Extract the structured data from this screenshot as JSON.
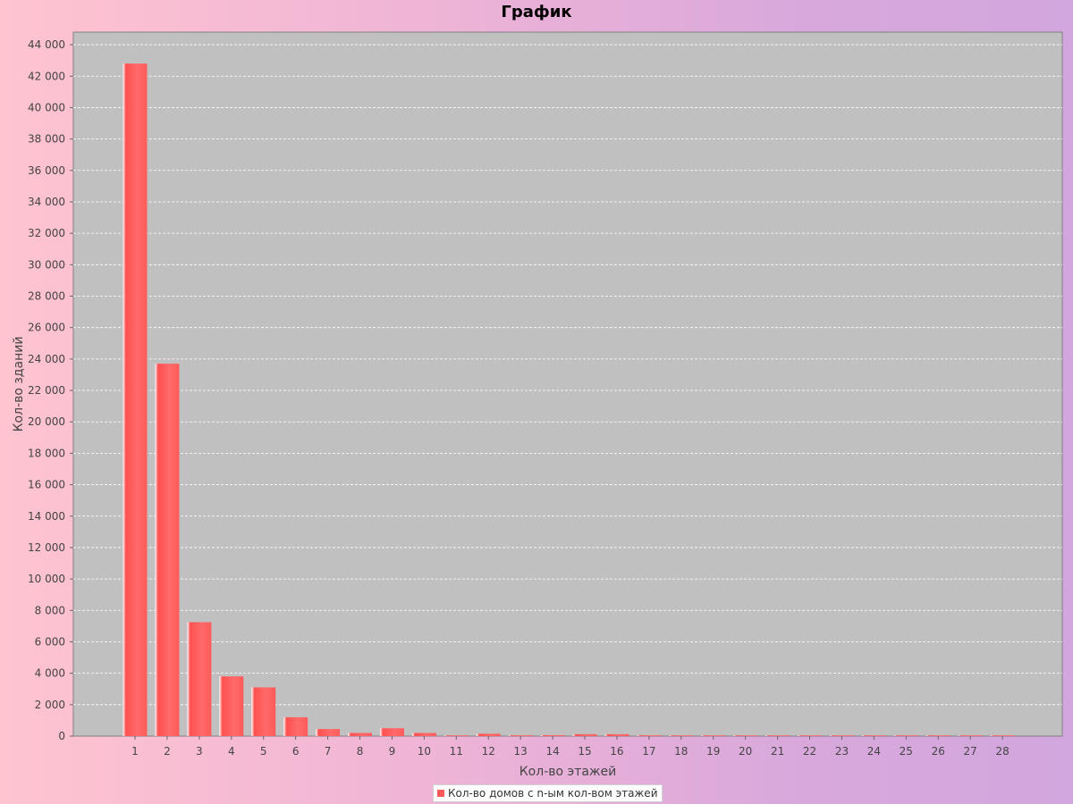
{
  "chart_data": {
    "type": "bar",
    "title": "График",
    "xlabel": "Кол-во этажей",
    "ylabel": "Кол-во зданий",
    "categories": [
      "1",
      "2",
      "3",
      "4",
      "5",
      "6",
      "7",
      "8",
      "9",
      "10",
      "11",
      "12",
      "13",
      "14",
      "15",
      "16",
      "17",
      "18",
      "19",
      "20",
      "21",
      "22",
      "23",
      "24",
      "25",
      "26",
      "27",
      "28"
    ],
    "series": [
      {
        "name": "Кол-во домов с n-ым кол-вом этажей",
        "values": [
          42800,
          23700,
          7250,
          3800,
          3100,
          1200,
          450,
          200,
          500,
          200,
          40,
          150,
          50,
          60,
          120,
          120,
          50,
          20,
          10,
          5,
          15,
          10,
          30,
          20,
          5,
          5,
          5,
          5
        ]
      }
    ],
    "yticks": [
      "0",
      "2 000",
      "4 000",
      "6 000",
      "8 000",
      "10 000",
      "12 000",
      "14 000",
      "16 000",
      "18 000",
      "20 000",
      "22 000",
      "24 000",
      "26 000",
      "28 000",
      "30 000",
      "32 000",
      "34 000",
      "36 000",
      "38 000",
      "40 000",
      "42 000",
      "44 000"
    ],
    "ylim": [
      0,
      44800
    ],
    "grid": true,
    "legend_position": "bottom",
    "colors": {
      "bar": "#ff5a5a",
      "plot_background": "#c0c0c0",
      "grid": "#ffffff"
    }
  }
}
